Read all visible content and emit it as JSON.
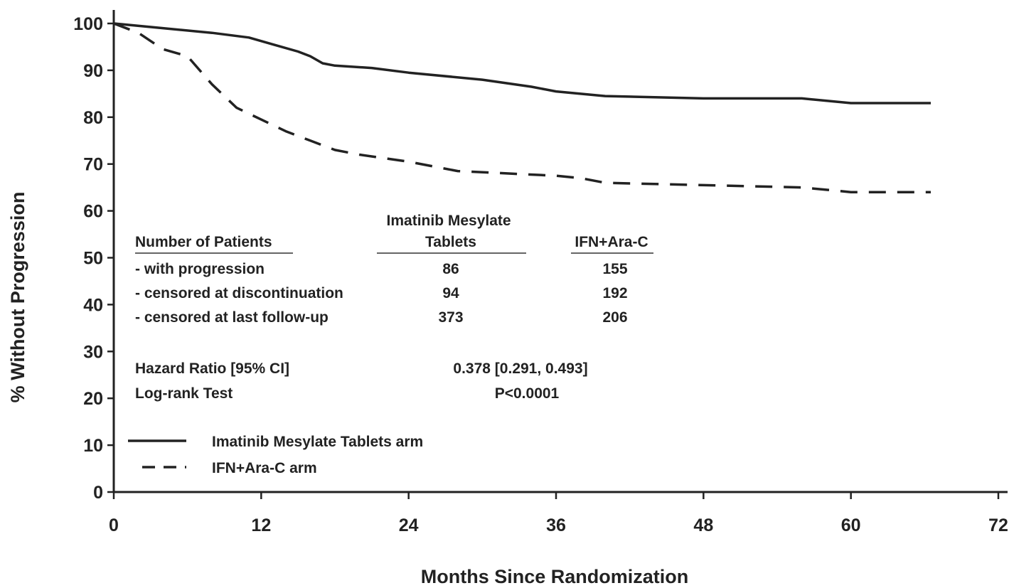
{
  "chart_data": {
    "type": "line",
    "xlabel": "Months Since Randomization",
    "ylabel": "% Without Progression",
    "xlim": [
      0,
      72
    ],
    "ylim": [
      0,
      100
    ],
    "x_ticks": [
      "0",
      "12",
      "24",
      "36",
      "48",
      "60",
      "72"
    ],
    "y_ticks": [
      "0",
      "10",
      "20",
      "30",
      "40",
      "50",
      "60",
      "70",
      "80",
      "90",
      "100"
    ],
    "grid": false,
    "legend_placement": "bottom-left",
    "series": [
      {
        "name": "Imatinib Mesylate Tablets arm",
        "line_style": "solid",
        "color": "#222222",
        "x": [
          0,
          4,
          8,
          11,
          13,
          15,
          16,
          17,
          18,
          21,
          24,
          30,
          34,
          36,
          40,
          48,
          56,
          60,
          66.5
        ],
        "y": [
          100,
          99,
          98,
          97,
          95.5,
          94,
          93,
          91.5,
          91,
          90.5,
          89.5,
          88,
          86.5,
          85.5,
          84.5,
          84,
          84,
          83,
          83
        ]
      },
      {
        "name": "IFN+Ara-C arm",
        "line_style": "dashed",
        "color": "#222222",
        "x": [
          0,
          2,
          4,
          6,
          8,
          10,
          12,
          14,
          16,
          18,
          20,
          24,
          28,
          32,
          36,
          38,
          40,
          48,
          56,
          60,
          66.5
        ],
        "y": [
          100,
          98,
          94.5,
          93,
          87,
          82,
          79.5,
          77,
          75,
          73,
          72,
          70.5,
          68.5,
          68,
          67.5,
          67,
          66,
          65.5,
          65,
          64,
          64
        ]
      }
    ],
    "annotation_table": {
      "header_label": "Number of Patients",
      "columns": [
        "Imatinib Mesylate\nTablets",
        "IFN+Ara-C"
      ],
      "rows": [
        {
          "label": "- with progression",
          "values": [
            "86",
            "155"
          ]
        },
        {
          "label": "- censored at discontinuation",
          "values": [
            "94",
            "192"
          ]
        },
        {
          "label": "- censored at last follow-up",
          "values": [
            "373",
            "206"
          ]
        }
      ]
    },
    "stats": [
      {
        "label": "Hazard Ratio [95% CI]",
        "value": "0.378 [0.291, 0.493]"
      },
      {
        "label": "Log-rank Test",
        "value": "P<0.0001"
      }
    ]
  }
}
